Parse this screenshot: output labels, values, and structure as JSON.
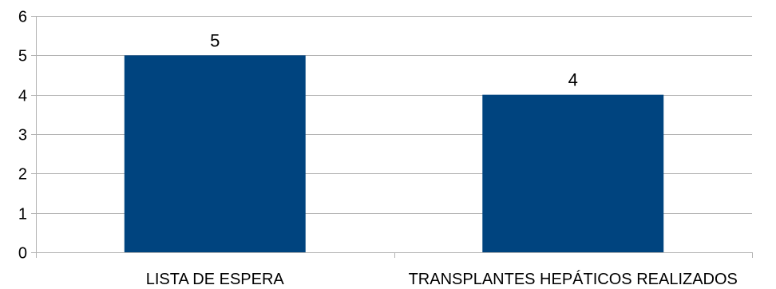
{
  "chart_data": {
    "type": "bar",
    "categories": [
      "LISTA DE ESPERA",
      "TRANSPLANTES HEPÁTICOS REALIZADOS"
    ],
    "values": [
      5,
      4
    ],
    "title": "",
    "xlabel": "",
    "ylabel": "",
    "ylim": [
      0,
      6
    ],
    "yticks": [
      0,
      1,
      2,
      3,
      4,
      5,
      6
    ],
    "grid": true,
    "legend": "none",
    "bar_color": "#00447f",
    "grid_color": "#b3b3b3",
    "data_labels": true
  }
}
